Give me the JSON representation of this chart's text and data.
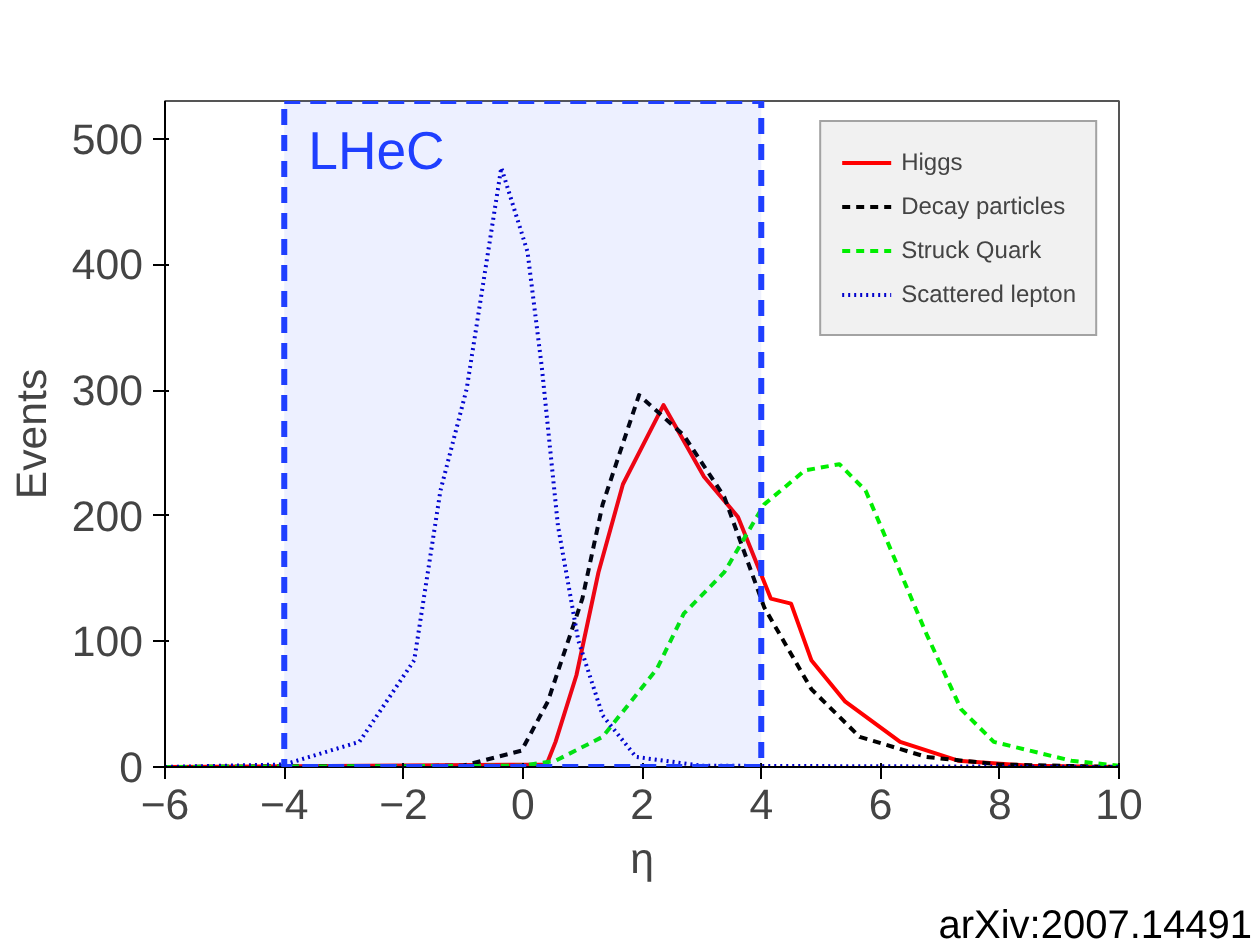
{
  "chart_data": {
    "type": "line",
    "xlabel": "η",
    "ylabel": "Events",
    "xlim": [
      -6,
      10
    ],
    "ylim": [
      0,
      530
    ],
    "xticks": [
      -6,
      -4,
      -2,
      0,
      2,
      4,
      6,
      8,
      10
    ],
    "yticks": [
      0,
      100,
      200,
      300,
      400,
      500
    ],
    "grid": false,
    "legend": "top right",
    "series": [
      {
        "name": "Higgs",
        "color": "#ff0000",
        "line_style": "solid",
        "x": [
          -6,
          0.4,
          0.55,
          0.9,
          1.27,
          1.68,
          2.36,
          3.04,
          3.61,
          4.16,
          4.5,
          4.84,
          5.41,
          6.33,
          7.3,
          8.5,
          10
        ],
        "values": [
          0,
          2,
          20,
          73,
          155,
          225,
          288,
          231,
          199,
          134,
          130,
          85,
          52,
          20,
          5,
          1,
          0
        ]
      },
      {
        "name": "Decay particles",
        "color": "#000000",
        "line_style": "dashed",
        "x": [
          -6,
          -1,
          -0.02,
          0.42,
          1.0,
          1.34,
          1.95,
          2.7,
          3.38,
          4.05,
          4.84,
          5.65,
          6.77,
          8,
          10
        ],
        "values": [
          0,
          1,
          13,
          52,
          134,
          209,
          296,
          264,
          215,
          127,
          62,
          24,
          8,
          2,
          0
        ]
      },
      {
        "name": "Struck Quark",
        "color": "#00ee00",
        "line_style": "dashed",
        "x": [
          -6,
          0,
          0.55,
          1.34,
          2.25,
          2.7,
          3.38,
          4.05,
          4.73,
          5.31,
          5.75,
          6.19,
          6.77,
          7.35,
          7.9,
          9.2,
          10
        ],
        "values": [
          0,
          1,
          5,
          24,
          78,
          122,
          155,
          209,
          236,
          241,
          220,
          171,
          106,
          46,
          20,
          5,
          1
        ]
      },
      {
        "name": "Scattered lepton",
        "color": "#0000cc",
        "line_style": "dotted",
        "x": [
          -6,
          -4,
          -2.74,
          -1.82,
          -1.38,
          -0.94,
          -0.36,
          0.08,
          0.32,
          0.59,
          0.93,
          1.34,
          1.9,
          3,
          10
        ],
        "values": [
          0,
          2,
          20,
          85,
          220,
          301,
          477,
          410,
          318,
          192,
          101,
          41,
          8,
          1,
          0
        ]
      }
    ],
    "bands": [
      {
        "axis": "x",
        "from": -4,
        "to": 4,
        "label": "LHeC",
        "color": "#1f3fff"
      }
    ],
    "annotations": [
      "arXiv:2007.14491"
    ]
  }
}
